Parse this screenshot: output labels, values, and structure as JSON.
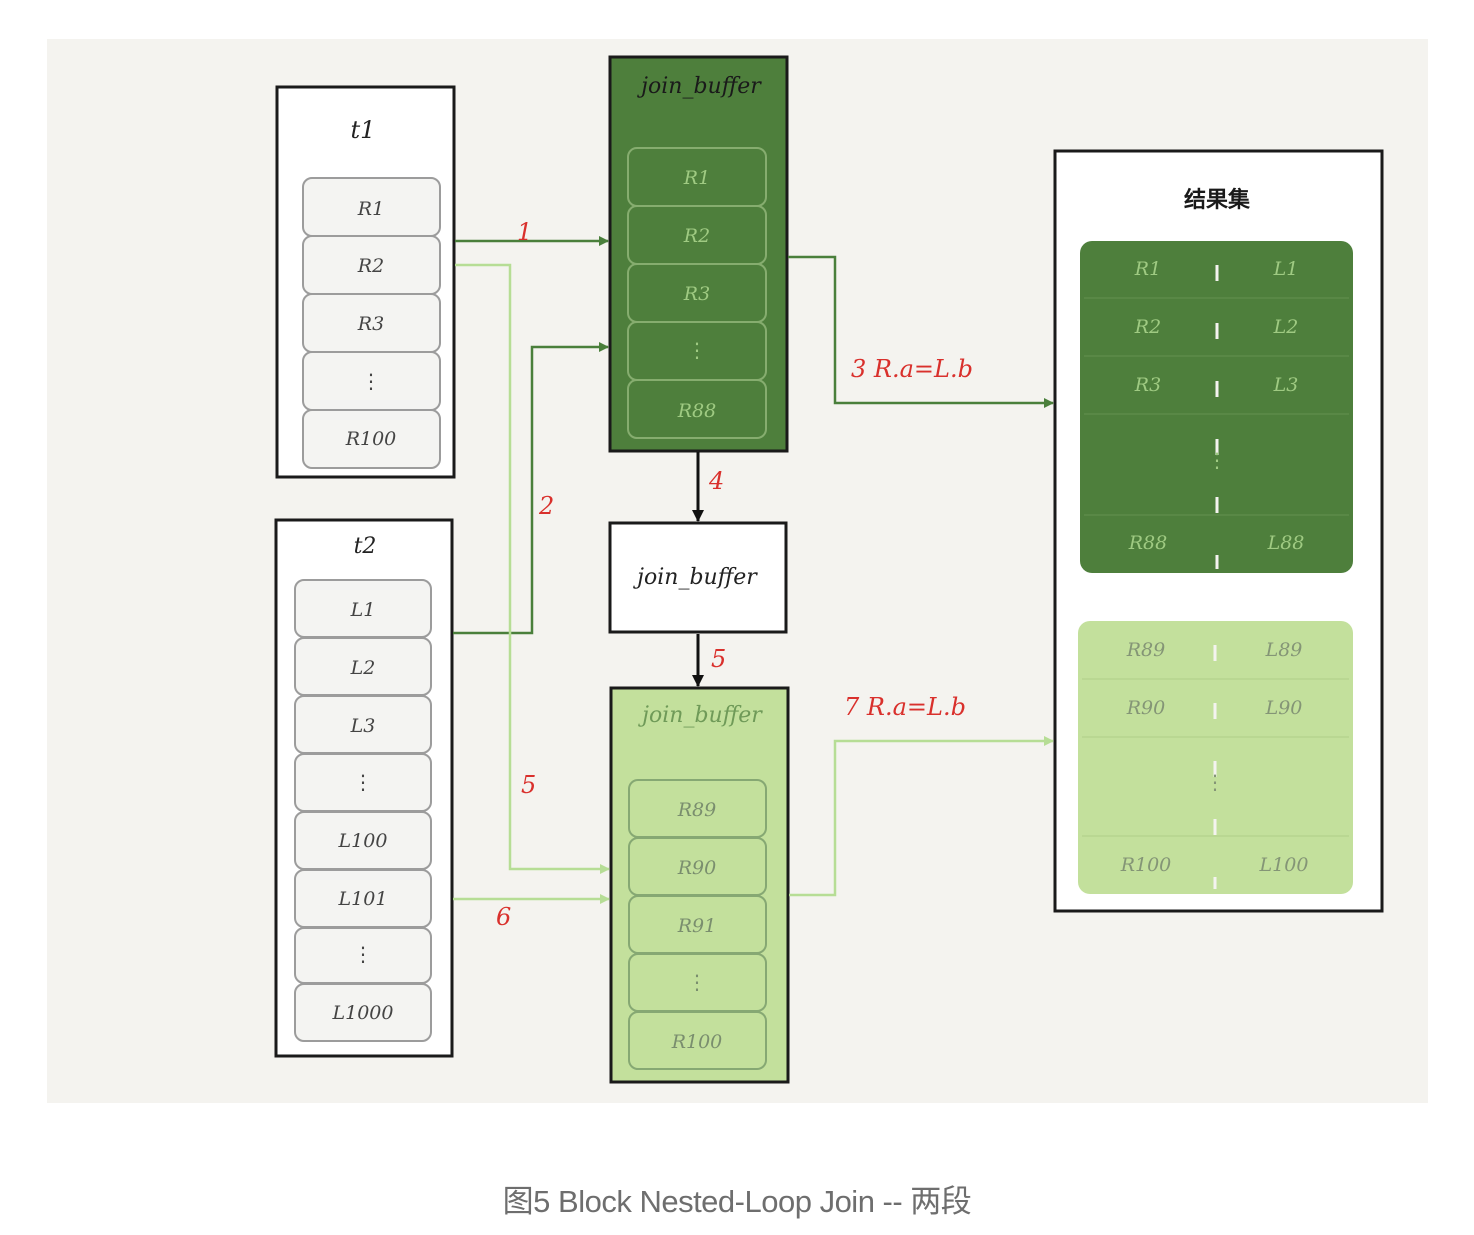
{
  "t1": {
    "title": "t1",
    "rows": [
      "R1",
      "R2",
      "R3",
      "⋮",
      "R100"
    ]
  },
  "t2": {
    "title": "t2",
    "rows": [
      "L1",
      "L2",
      "L3",
      "⋮",
      "L100",
      "L101",
      "⋮",
      "L1000"
    ]
  },
  "join_buffer_1": {
    "title": "join_buffer",
    "rows": [
      "R1",
      "R2",
      "R3",
      "⋮",
      "R88"
    ]
  },
  "join_buffer_empty": {
    "title": "join_buffer"
  },
  "join_buffer_2": {
    "title": "join_buffer",
    "rows": [
      "R89",
      "R90",
      "R91",
      "⋮",
      "R100"
    ]
  },
  "result": {
    "title": "结果集",
    "group1": [
      {
        "left": "R1",
        "right": "L1"
      },
      {
        "left": "R2",
        "right": "L2"
      },
      {
        "left": "R3",
        "right": "L3"
      },
      {
        "left": "",
        "right": ""
      },
      {
        "left": "R88",
        "right": "L88"
      }
    ],
    "group2": [
      {
        "left": "R89",
        "right": "L89"
      },
      {
        "left": "R90",
        "right": "L90"
      },
      {
        "left": "",
        "right": ""
      },
      {
        "left": "R100",
        "right": "L100"
      }
    ]
  },
  "steps": {
    "s1": "1",
    "s2": "2",
    "s3": "3 R.a=L.b",
    "s4": "4",
    "s5a": "5",
    "s5b": "5",
    "s6": "6",
    "s7": "7 R.a=L.b"
  },
  "caption": "图5 Block Nested-Loop Join -- 两段",
  "colors": {
    "background": "#f4f3ef",
    "dark_green": "#4e7f3c",
    "light_green": "#c3e09c",
    "dark_arrow": "#4a7f3b",
    "light_arrow": "#b6dd95",
    "step_label": "#d9302c"
  }
}
